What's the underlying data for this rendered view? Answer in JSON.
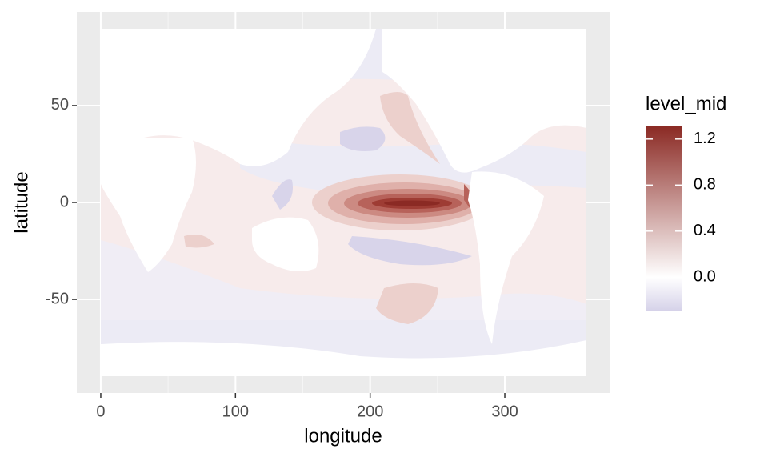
{
  "chart_data": {
    "type": "contour",
    "x_label": "longitude",
    "y_label": "latitude",
    "xlim": [
      -17.8,
      377.8
    ],
    "xticks": [
      0,
      100,
      200,
      300
    ],
    "ylim": [
      -98.3,
      98.3
    ],
    "yticks": [
      -50,
      0,
      50
    ],
    "grid": true,
    "legend": {
      "title": "level_mid",
      "position": "right",
      "limits": [
        -0.29,
        1.31
      ],
      "ticks": [
        1.2,
        0.8,
        0.4,
        {
          "value": 0,
          "label": "0.0"
        }
      ],
      "colors": {
        "low": "#d6d2e9",
        "mid": "#ffffff",
        "high": "#8b2a24"
      }
    }
  }
}
